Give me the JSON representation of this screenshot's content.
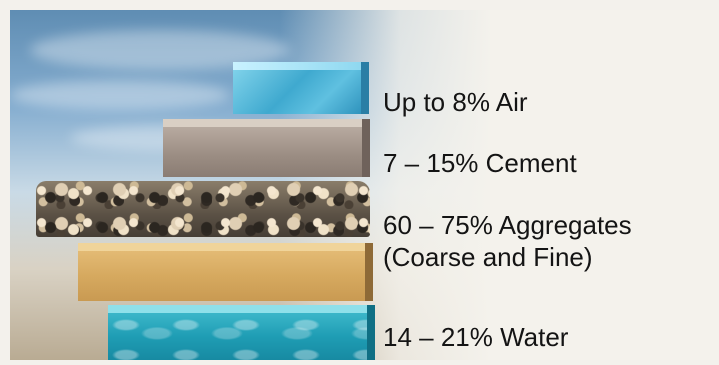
{
  "components": [
    {
      "id": "air",
      "label": "Up to 8% Air",
      "color": "#3fa9cf"
    },
    {
      "id": "cement",
      "label": "7 – 15% Cement",
      "color": "#a29489"
    },
    {
      "id": "aggregates",
      "label_line1": "60 – 75% Aggregates",
      "label_line2": "(Coarse and Fine)",
      "color": "#5b5145"
    },
    {
      "id": "water",
      "label": "14 – 21% Water",
      "color": "#1f9db4"
    }
  ]
}
